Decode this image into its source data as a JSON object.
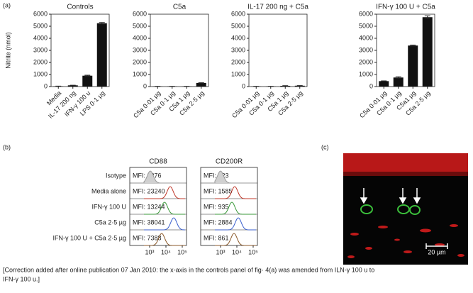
{
  "panel_labels": [
    "(a)",
    "(b)",
    "(c)"
  ],
  "chart_data": [
    {
      "type": "bar",
      "title": "Controls",
      "ylabel": "Nitrite (nmol)",
      "categories": [
        "Media",
        "IL-17 200 ng",
        "IFN-γ 100 u",
        "LPS 0·1 µg"
      ],
      "values": [
        30,
        100,
        900,
        5250
      ],
      "errors": [
        5,
        10,
        40,
        60
      ],
      "color": "#111111",
      "ylim": [
        0,
        6000
      ],
      "yticks": [
        0,
        1000,
        2000,
        3000,
        4000,
        5000,
        6000
      ]
    },
    {
      "type": "bar",
      "title": "C5a",
      "categories": [
        "C5a 0·01 µg",
        "C5a 0·1 µg",
        "C5a 1 µg",
        "C5a 2·5 µg"
      ],
      "values": [
        20,
        20,
        20,
        300
      ],
      "errors": [
        5,
        5,
        5,
        15
      ],
      "color": "#111111",
      "ylim": [
        0,
        6000
      ],
      "yticks": [
        0,
        1000,
        2000,
        3000,
        4000,
        5000,
        6000
      ]
    },
    {
      "type": "bar",
      "title": "IL-17 200 ng + C5a",
      "categories": [
        "C5a 0·01 µg",
        "C5a 0·1 µg",
        "C5a 1 µg",
        "C5a 2·5 µg"
      ],
      "values": [
        20,
        20,
        60,
        70
      ],
      "errors": [
        5,
        5,
        10,
        10
      ],
      "color": "#111111",
      "ylim": [
        0,
        6000
      ],
      "yticks": [
        0,
        1000,
        2000,
        3000,
        4000,
        5000,
        6000
      ]
    },
    {
      "type": "bar",
      "title": "IFN-γ 100 U + C5a",
      "categories": [
        "C5a 0·01 µg",
        "C5a 0·1 µg",
        "C5a1 µg",
        "C5a 2·5 µg"
      ],
      "values": [
        450,
        750,
        3400,
        5750
      ],
      "errors": [
        20,
        60,
        40,
        120
      ],
      "color": "#111111",
      "ylim": [
        0,
        6000
      ],
      "yticks": [
        0,
        1000,
        2000,
        3000,
        4000,
        5000,
        6000
      ]
    }
  ],
  "flow": {
    "rows": [
      "Isotype",
      "Media alone",
      "IFN-γ 100 U",
      "C5a 2·5 µg",
      "IFN-γ 100 U + C5a 2·5 µg"
    ],
    "colors": [
      "#9a9a9a",
      "#c0392b",
      "#3a9a3a",
      "#3a5fcd",
      "#8b5a2b"
    ],
    "xticks": [
      "10³",
      "10⁴",
      "10⁵"
    ],
    "panels": [
      {
        "title": "CD88",
        "mfi": [
          "MFI: 3376",
          "MFI: 23240",
          "MFI: 13244",
          "MFI: 38041",
          "MFI: 7388"
        ]
      },
      {
        "title": "CD200R",
        "mfi": [
          "MFI: 323",
          "MFI: 1585",
          "MFI: 935",
          "MFI: 2884",
          "MFI: 861"
        ]
      }
    ]
  },
  "image": {
    "scale_label": "20 µm"
  },
  "correction": [
    "[Correction added after online publication 07 Jan 2010: the x-axis in the controls panel of fig· 4(a) was amended from ILN-γ 100 u to",
    "IFN-γ 100 u.]"
  ]
}
